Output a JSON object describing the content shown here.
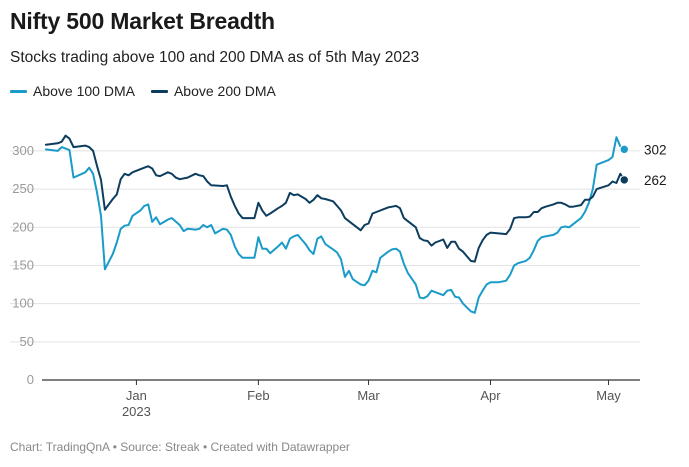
{
  "colors": {
    "series100": "#1a9bc9",
    "series200": "#0d3d5e",
    "grid": "#e3e3e3",
    "axis": "#333333",
    "tickText": "#9a9a9a",
    "xTickText": "#555555"
  },
  "footer": "Chart: TradingQnA • Source: Streak • Created with Datawrapper",
  "chart_data": {
    "type": "line",
    "title": "Nifty 500 Market Breadth",
    "subtitle": "Stocks trading above 100 and 200 DMA as of 5th May 2023",
    "xlabel": "",
    "ylabel": "",
    "ylim": [
      0,
      330
    ],
    "yticks": [
      0,
      50,
      100,
      150,
      200,
      250,
      300
    ],
    "grid": true,
    "legend_position": "top-left",
    "xlim": [
      "2022-12-08",
      "2023-05-09"
    ],
    "xticks": [
      {
        "date": "2023-01-01",
        "label": "Jan",
        "sublabel": "2023"
      },
      {
        "date": "2023-02-01",
        "label": "Feb",
        "sublabel": ""
      },
      {
        "date": "2023-03-01",
        "label": "Mar",
        "sublabel": ""
      },
      {
        "date": "2023-04-01",
        "label": "Apr",
        "sublabel": ""
      },
      {
        "date": "2023-05-01",
        "label": "May",
        "sublabel": ""
      }
    ],
    "series": [
      {
        "name": "Above 100 DMA",
        "end_label": "302",
        "points": [
          [
            "2022-12-09",
            302
          ],
          [
            "2022-12-12",
            300
          ],
          [
            "2022-12-13",
            305
          ],
          [
            "2022-12-15",
            301
          ],
          [
            "2022-12-16",
            265
          ],
          [
            "2022-12-19",
            272
          ],
          [
            "2022-12-20",
            278
          ],
          [
            "2022-12-21",
            270
          ],
          [
            "2022-12-22",
            245
          ],
          [
            "2022-12-23",
            215
          ],
          [
            "2022-12-24",
            145
          ],
          [
            "2022-12-26",
            165
          ],
          [
            "2022-12-27",
            180
          ],
          [
            "2022-12-28",
            198
          ],
          [
            "2022-12-29",
            202
          ],
          [
            "2022-12-30",
            203
          ],
          [
            "2022-12-31",
            215
          ],
          [
            "2023-01-02",
            222
          ],
          [
            "2023-01-03",
            228
          ],
          [
            "2023-01-04",
            230
          ],
          [
            "2023-01-05",
            207
          ],
          [
            "2023-01-06",
            213
          ],
          [
            "2023-01-07",
            204
          ],
          [
            "2023-01-09",
            210
          ],
          [
            "2023-01-10",
            212
          ],
          [
            "2023-01-12",
            203
          ],
          [
            "2023-01-13",
            195
          ],
          [
            "2023-01-14",
            198
          ],
          [
            "2023-01-16",
            197
          ],
          [
            "2023-01-17",
            198
          ],
          [
            "2023-01-18",
            203
          ],
          [
            "2023-01-19",
            200
          ],
          [
            "2023-01-20",
            203
          ],
          [
            "2023-01-21",
            192
          ],
          [
            "2023-01-23",
            198
          ],
          [
            "2023-01-24",
            197
          ],
          [
            "2023-01-25",
            190
          ],
          [
            "2023-01-26",
            175
          ],
          [
            "2023-01-27",
            165
          ],
          [
            "2023-01-28",
            160
          ],
          [
            "2023-01-30",
            160
          ],
          [
            "2023-01-31",
            160
          ],
          [
            "2023-02-01",
            187
          ],
          [
            "2023-02-02",
            172
          ],
          [
            "2023-02-03",
            172
          ],
          [
            "2023-02-04",
            166
          ],
          [
            "2023-02-06",
            175
          ],
          [
            "2023-02-07",
            180
          ],
          [
            "2023-02-08",
            172
          ],
          [
            "2023-02-09",
            185
          ],
          [
            "2023-02-10",
            188
          ],
          [
            "2023-02-11",
            190
          ],
          [
            "2023-02-13",
            178
          ],
          [
            "2023-02-14",
            170
          ],
          [
            "2023-02-15",
            165
          ],
          [
            "2023-02-16",
            185
          ],
          [
            "2023-02-17",
            188
          ],
          [
            "2023-02-18",
            178
          ],
          [
            "2023-02-20",
            171
          ],
          [
            "2023-02-21",
            167
          ],
          [
            "2023-02-22",
            158
          ],
          [
            "2023-02-23",
            135
          ],
          [
            "2023-02-24",
            143
          ],
          [
            "2023-02-25",
            132
          ],
          [
            "2023-02-27",
            125
          ],
          [
            "2023-02-28",
            124
          ],
          [
            "2023-03-01",
            130
          ],
          [
            "2023-03-02",
            143
          ],
          [
            "2023-03-03",
            141
          ],
          [
            "2023-03-04",
            160
          ],
          [
            "2023-03-06",
            168
          ],
          [
            "2023-03-07",
            171
          ],
          [
            "2023-03-08",
            172
          ],
          [
            "2023-03-09",
            168
          ],
          [
            "2023-03-10",
            152
          ],
          [
            "2023-03-11",
            140
          ],
          [
            "2023-03-13",
            125
          ],
          [
            "2023-03-14",
            108
          ],
          [
            "2023-03-15",
            107
          ],
          [
            "2023-03-16",
            110
          ],
          [
            "2023-03-17",
            117
          ],
          [
            "2023-03-18",
            115
          ],
          [
            "2023-03-20",
            111
          ],
          [
            "2023-03-21",
            117
          ],
          [
            "2023-03-22",
            118
          ],
          [
            "2023-03-23",
            109
          ],
          [
            "2023-03-24",
            108
          ],
          [
            "2023-03-25",
            100
          ],
          [
            "2023-03-27",
            90
          ],
          [
            "2023-03-28",
            88
          ],
          [
            "2023-03-29",
            108
          ],
          [
            "2023-03-30",
            117
          ],
          [
            "2023-03-31",
            125
          ],
          [
            "2023-04-01",
            128
          ],
          [
            "2023-04-03",
            128
          ],
          [
            "2023-04-05",
            130
          ],
          [
            "2023-04-06",
            138
          ],
          [
            "2023-04-07",
            150
          ],
          [
            "2023-04-08",
            153
          ],
          [
            "2023-04-10",
            156
          ],
          [
            "2023-04-11",
            160
          ],
          [
            "2023-04-12",
            170
          ],
          [
            "2023-04-13",
            182
          ],
          [
            "2023-04-14",
            187
          ],
          [
            "2023-04-15",
            188
          ],
          [
            "2023-04-17",
            190
          ],
          [
            "2023-04-18",
            193
          ],
          [
            "2023-04-19",
            200
          ],
          [
            "2023-04-20",
            201
          ],
          [
            "2023-04-21",
            200
          ],
          [
            "2023-04-22",
            204
          ],
          [
            "2023-04-24",
            212
          ],
          [
            "2023-04-25",
            220
          ],
          [
            "2023-04-26",
            232
          ],
          [
            "2023-04-27",
            250
          ],
          [
            "2023-04-28",
            282
          ],
          [
            "2023-05-01",
            288
          ],
          [
            "2023-05-02",
            292
          ],
          [
            "2023-05-03",
            318
          ],
          [
            "2023-05-04",
            306
          ],
          [
            "2023-05-05",
            302
          ]
        ]
      },
      {
        "name": "Above 200 DMA",
        "end_label": "262",
        "points": [
          [
            "2022-12-09",
            308
          ],
          [
            "2022-12-12",
            310
          ],
          [
            "2022-12-13",
            312
          ],
          [
            "2022-12-14",
            320
          ],
          [
            "2022-12-15",
            316
          ],
          [
            "2022-12-16",
            305
          ],
          [
            "2022-12-19",
            307
          ],
          [
            "2022-12-20",
            305
          ],
          [
            "2022-12-21",
            300
          ],
          [
            "2022-12-22",
            280
          ],
          [
            "2022-12-23",
            262
          ],
          [
            "2022-12-24",
            223
          ],
          [
            "2022-12-26",
            237
          ],
          [
            "2022-12-27",
            243
          ],
          [
            "2022-12-28",
            263
          ],
          [
            "2022-12-29",
            270
          ],
          [
            "2022-12-30",
            268
          ],
          [
            "2022-12-31",
            272
          ],
          [
            "2023-01-02",
            276
          ],
          [
            "2023-01-03",
            278
          ],
          [
            "2023-01-04",
            280
          ],
          [
            "2023-01-05",
            277
          ],
          [
            "2023-01-06",
            268
          ],
          [
            "2023-01-07",
            267
          ],
          [
            "2023-01-09",
            272
          ],
          [
            "2023-01-10",
            270
          ],
          [
            "2023-01-11",
            265
          ],
          [
            "2023-01-12",
            263
          ],
          [
            "2023-01-14",
            265
          ],
          [
            "2023-01-16",
            270
          ],
          [
            "2023-01-17",
            268
          ],
          [
            "2023-01-18",
            267
          ],
          [
            "2023-01-19",
            260
          ],
          [
            "2023-01-20",
            255
          ],
          [
            "2023-01-23",
            254
          ],
          [
            "2023-01-24",
            255
          ],
          [
            "2023-01-25",
            240
          ],
          [
            "2023-01-26",
            228
          ],
          [
            "2023-01-27",
            218
          ],
          [
            "2023-01-28",
            212
          ],
          [
            "2023-01-30",
            212
          ],
          [
            "2023-01-31",
            212
          ],
          [
            "2023-02-01",
            232
          ],
          [
            "2023-02-02",
            222
          ],
          [
            "2023-02-03",
            215
          ],
          [
            "2023-02-04",
            218
          ],
          [
            "2023-02-06",
            225
          ],
          [
            "2023-02-07",
            228
          ],
          [
            "2023-02-08",
            232
          ],
          [
            "2023-02-09",
            245
          ],
          [
            "2023-02-10",
            242
          ],
          [
            "2023-02-11",
            243
          ],
          [
            "2023-02-13",
            237
          ],
          [
            "2023-02-14",
            232
          ],
          [
            "2023-02-15",
            236
          ],
          [
            "2023-02-16",
            242
          ],
          [
            "2023-02-17",
            238
          ],
          [
            "2023-02-18",
            237
          ],
          [
            "2023-02-20",
            234
          ],
          [
            "2023-02-21",
            228
          ],
          [
            "2023-02-22",
            222
          ],
          [
            "2023-02-23",
            212
          ],
          [
            "2023-02-24",
            208
          ],
          [
            "2023-02-25",
            204
          ],
          [
            "2023-02-27",
            196
          ],
          [
            "2023-02-28",
            203
          ],
          [
            "2023-03-01",
            205
          ],
          [
            "2023-03-02",
            218
          ],
          [
            "2023-03-03",
            220
          ],
          [
            "2023-03-04",
            222
          ],
          [
            "2023-03-06",
            226
          ],
          [
            "2023-03-07",
            227
          ],
          [
            "2023-03-08",
            228
          ],
          [
            "2023-03-09",
            225
          ],
          [
            "2023-03-10",
            212
          ],
          [
            "2023-03-11",
            208
          ],
          [
            "2023-03-13",
            200
          ],
          [
            "2023-03-14",
            186
          ],
          [
            "2023-03-15",
            183
          ],
          [
            "2023-03-16",
            182
          ],
          [
            "2023-03-17",
            176
          ],
          [
            "2023-03-18",
            180
          ],
          [
            "2023-03-20",
            184
          ],
          [
            "2023-03-21",
            173
          ],
          [
            "2023-03-22",
            181
          ],
          [
            "2023-03-23",
            181
          ],
          [
            "2023-03-24",
            172
          ],
          [
            "2023-03-25",
            168
          ],
          [
            "2023-03-27",
            156
          ],
          [
            "2023-03-28",
            155
          ],
          [
            "2023-03-29",
            173
          ],
          [
            "2023-03-30",
            183
          ],
          [
            "2023-03-31",
            190
          ],
          [
            "2023-04-01",
            193
          ],
          [
            "2023-04-03",
            192
          ],
          [
            "2023-04-05",
            191
          ],
          [
            "2023-04-06",
            198
          ],
          [
            "2023-04-07",
            212
          ],
          [
            "2023-04-08",
            213
          ],
          [
            "2023-04-10",
            213
          ],
          [
            "2023-04-11",
            214
          ],
          [
            "2023-04-12",
            220
          ],
          [
            "2023-04-13",
            220
          ],
          [
            "2023-04-14",
            225
          ],
          [
            "2023-04-15",
            227
          ],
          [
            "2023-04-17",
            230
          ],
          [
            "2023-04-18",
            232
          ],
          [
            "2023-04-19",
            232
          ],
          [
            "2023-04-20",
            230
          ],
          [
            "2023-04-21",
            227
          ],
          [
            "2023-04-22",
            227
          ],
          [
            "2023-04-24",
            229
          ],
          [
            "2023-04-25",
            236
          ],
          [
            "2023-04-26",
            236
          ],
          [
            "2023-04-27",
            240
          ],
          [
            "2023-04-28",
            250
          ],
          [
            "2023-05-01",
            255
          ],
          [
            "2023-05-02",
            260
          ],
          [
            "2023-05-03",
            258
          ],
          [
            "2023-05-04",
            270
          ],
          [
            "2023-05-05",
            262
          ]
        ]
      }
    ]
  }
}
